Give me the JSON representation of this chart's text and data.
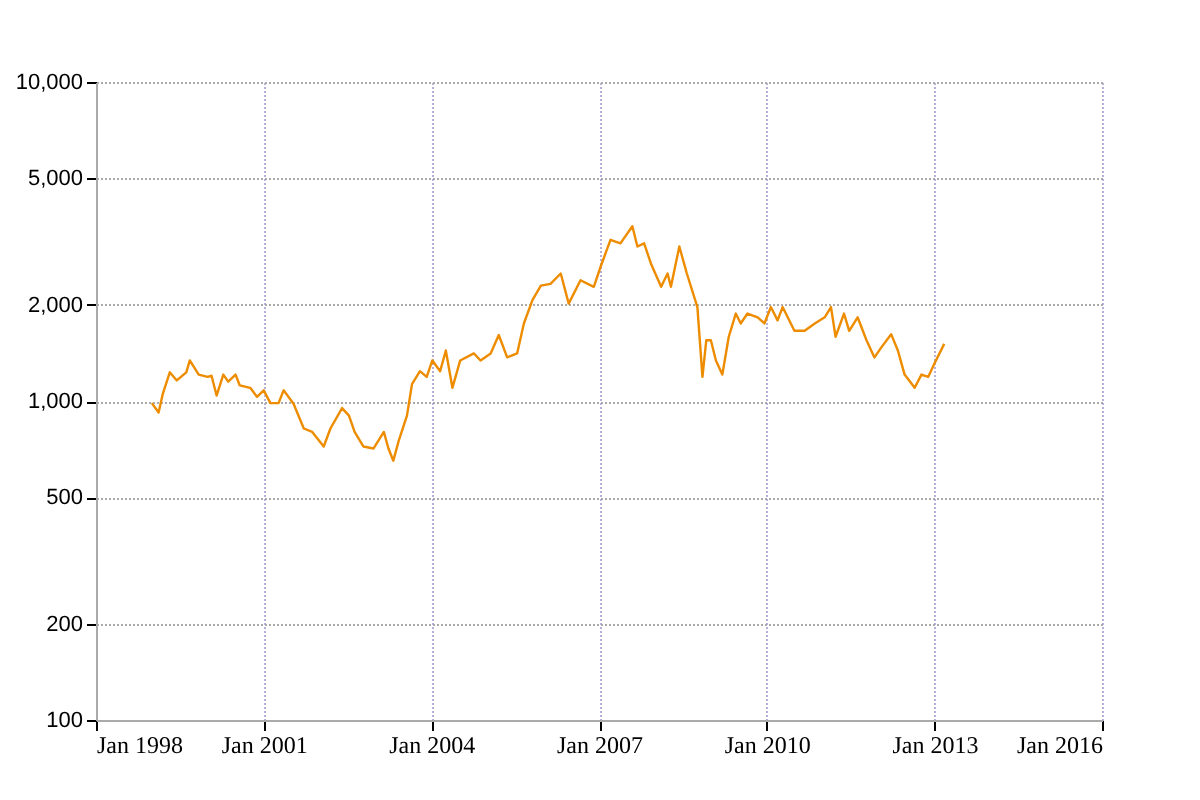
{
  "chart_data": {
    "type": "line",
    "log": "y",
    "grid": true,
    "legend": false,
    "xlim": [
      "1998-01-01",
      "2016-01-01"
    ],
    "xticks": [
      {
        "value": "1998-01-01",
        "label": "Jan 1998"
      },
      {
        "value": "2001-01-01",
        "label": "Jan 2001"
      },
      {
        "value": "2004-01-01",
        "label": "Jan 2004"
      },
      {
        "value": "2007-01-01",
        "label": "Jan 2007"
      },
      {
        "value": "2010-01-01",
        "label": "Jan 2010"
      },
      {
        "value": "2013-01-01",
        "label": "Jan 2013"
      },
      {
        "value": "2016-01-01",
        "label": "Jan 2016"
      }
    ],
    "ylim": [
      100,
      10000
    ],
    "yticks": [
      100,
      200,
      500,
      {
        "value": 1000,
        "label": "1,000"
      },
      {
        "value": 2000,
        "label": "2,000"
      },
      {
        "value": 5000,
        "label": "5,000"
      },
      {
        "value": 10000,
        "label": "10,000"
      }
    ],
    "line_style": "solid",
    "marker": "none",
    "x": [
      "1999-01-01",
      "1999-02-14",
      "1999-03-13",
      "1999-04-28",
      "1999-06-13",
      "1999-08-14",
      "1999-09-06",
      "1999-11-03",
      "2000-01-01",
      "2000-01-26",
      "2000-02-28",
      "2000-04-12",
      "2000-05-14",
      "2000-07-01",
      "2000-07-28",
      "2000-10-05",
      "2000-11-18",
      "2001-01-01",
      "2001-02-14",
      "2001-04-08",
      "2001-05-11",
      "2001-07-15",
      "2001-09-20",
      "2001-11-14",
      "2002-01-28",
      "2002-03-13",
      "2002-05-28",
      "2002-07-12",
      "2002-08-18",
      "2002-10-15",
      "2002-12-20",
      "2003-02-25",
      "2003-03-27",
      "2003-04-28",
      "2003-06-02",
      "2003-07-26",
      "2003-08-28",
      "2003-10-19",
      "2003-12-02",
      "2004-01-08",
      "2004-02-28",
      "2004-04-05",
      "2004-05-18",
      "2004-07-08",
      "2004-10-05",
      "2004-11-18",
      "2005-01-23",
      "2005-03-17",
      "2005-05-11",
      "2005-07-15",
      "2005-08-28",
      "2005-10-23",
      "2005-12-17",
      "2006-02-18",
      "2006-04-26",
      "2006-06-17",
      "2006-09-02",
      "2006-11-28",
      "2007-01-12",
      "2007-03-17",
      "2007-05-21",
      "2007-08-07",
      "2007-09-09",
      "2007-10-23",
      "2007-12-06",
      "2008-02-11",
      "2008-03-24",
      "2008-04-15",
      "2008-06-09",
      "2008-07-28",
      "2008-10-05",
      "2008-11-07",
      "2008-12-02",
      "2009-01-01",
      "2009-02-03",
      "2009-03-17",
      "2009-04-28",
      "2009-06-13",
      "2009-07-15",
      "2009-08-28",
      "2009-11-03",
      "2009-12-17",
      "2010-01-28",
      "2010-03-13",
      "2010-04-15",
      "2010-07-01",
      "2010-09-06",
      "2010-11-11",
      "2011-01-15",
      "2011-02-25",
      "2011-03-27",
      "2011-05-21",
      "2011-06-24",
      "2011-08-18",
      "2011-10-15",
      "2011-12-06",
      "2012-01-19",
      "2012-03-24",
      "2012-05-07",
      "2012-06-20",
      "2012-08-25",
      "2012-10-08",
      "2012-11-21",
      "2013-01-01",
      "2013-03-06"
    ],
    "series": [
      {
        "color": "#ee8c00",
        "values": [
          985,
          920,
          1050,
          1230,
          1160,
          1230,
          1340,
          1210,
          1190,
          1200,
          1040,
          1210,
          1150,
          1210,
          1120,
          1100,
          1030,
          1080,
          985,
          985,
          1080,
          980,
          820,
          800,
          720,
          820,
          950,
          900,
          800,
          720,
          710,
          800,
          710,
          650,
          750,
          900,
          1130,
          1240,
          1190,
          1340,
          1240,
          1440,
          1100,
          1340,
          1410,
          1340,
          1410,
          1610,
          1370,
          1410,
          1750,
          2070,
          2300,
          2330,
          2510,
          2020,
          2390,
          2280,
          2640,
          3200,
          3120,
          3530,
          3050,
          3120,
          2700,
          2280,
          2510,
          2280,
          3050,
          2510,
          1970,
          1190,
          1550,
          1550,
          1340,
          1210,
          1590,
          1880,
          1750,
          1880,
          1830,
          1750,
          1970,
          1790,
          1970,
          1660,
          1660,
          1750,
          1830,
          1970,
          1590,
          1880,
          1660,
          1830,
          1550,
          1370,
          1470,
          1620,
          1440,
          1210,
          1100,
          1210,
          1190,
          1310,
          1510
        ]
      }
    ]
  }
}
